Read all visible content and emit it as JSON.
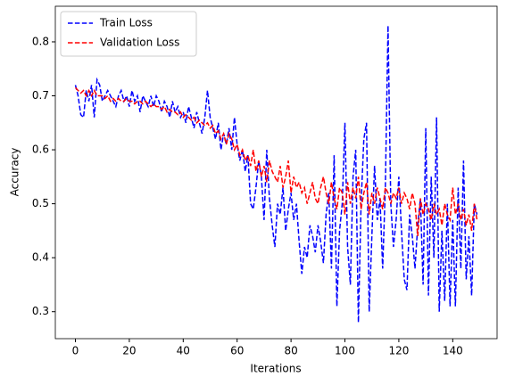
{
  "chart_data": {
    "type": "line",
    "xlabel": "Iterations",
    "ylabel": "Accuracy",
    "x": [
      0,
      1,
      2,
      3,
      4,
      5,
      6,
      7,
      8,
      9,
      10,
      11,
      12,
      13,
      14,
      15,
      16,
      17,
      18,
      19,
      20,
      21,
      22,
      23,
      24,
      25,
      26,
      27,
      28,
      29,
      30,
      31,
      32,
      33,
      34,
      35,
      36,
      37,
      38,
      39,
      40,
      41,
      42,
      43,
      44,
      45,
      46,
      47,
      48,
      49,
      50,
      51,
      52,
      53,
      54,
      55,
      56,
      57,
      58,
      59,
      60,
      61,
      62,
      63,
      64,
      65,
      66,
      67,
      68,
      69,
      70,
      71,
      72,
      73,
      74,
      75,
      76,
      77,
      78,
      79,
      80,
      81,
      82,
      83,
      84,
      85,
      86,
      87,
      88,
      89,
      90,
      91,
      92,
      93,
      94,
      95,
      96,
      97,
      98,
      99,
      100,
      101,
      102,
      103,
      104,
      105,
      106,
      107,
      108,
      109,
      110,
      111,
      112,
      113,
      114,
      115,
      116,
      117,
      118,
      119,
      120,
      121,
      122,
      123,
      124,
      125,
      126,
      127,
      128,
      129,
      130,
      131,
      132,
      133,
      134,
      135,
      136,
      137,
      138,
      139,
      140,
      141,
      142,
      143,
      144,
      145,
      146,
      147,
      148,
      149
    ],
    "series": [
      {
        "name": "Train Loss",
        "color": "#0000ff",
        "values": [
          0.72,
          0.7,
          0.665,
          0.66,
          0.71,
          0.69,
          0.72,
          0.66,
          0.73,
          0.72,
          0.69,
          0.7,
          0.71,
          0.7,
          0.69,
          0.68,
          0.7,
          0.71,
          0.69,
          0.7,
          0.68,
          0.71,
          0.69,
          0.7,
          0.67,
          0.7,
          0.69,
          0.68,
          0.7,
          0.68,
          0.7,
          0.69,
          0.67,
          0.69,
          0.68,
          0.66,
          0.69,
          0.67,
          0.68,
          0.66,
          0.67,
          0.65,
          0.68,
          0.66,
          0.64,
          0.67,
          0.65,
          0.63,
          0.66,
          0.71,
          0.66,
          0.64,
          0.62,
          0.65,
          0.6,
          0.63,
          0.61,
          0.64,
          0.6,
          0.66,
          0.61,
          0.58,
          0.6,
          0.56,
          0.59,
          0.5,
          0.49,
          0.53,
          0.58,
          0.55,
          0.47,
          0.6,
          0.51,
          0.46,
          0.42,
          0.5,
          0.48,
          0.53,
          0.45,
          0.49,
          0.52,
          0.47,
          0.5,
          0.43,
          0.37,
          0.42,
          0.4,
          0.46,
          0.44,
          0.41,
          0.46,
          0.43,
          0.39,
          0.48,
          0.52,
          0.38,
          0.59,
          0.31,
          0.45,
          0.5,
          0.65,
          0.42,
          0.35,
          0.55,
          0.6,
          0.28,
          0.5,
          0.62,
          0.65,
          0.3,
          0.44,
          0.57,
          0.47,
          0.51,
          0.38,
          0.53,
          0.83,
          0.5,
          0.42,
          0.47,
          0.55,
          0.45,
          0.36,
          0.34,
          0.48,
          0.44,
          0.38,
          0.46,
          0.51,
          0.35,
          0.64,
          0.33,
          0.55,
          0.4,
          0.66,
          0.3,
          0.45,
          0.32,
          0.5,
          0.31,
          0.47,
          0.31,
          0.53,
          0.38,
          0.58,
          0.36,
          0.44,
          0.33,
          0.5,
          0.48
        ]
      },
      {
        "name": "Validation Loss",
        "color": "#ff0000",
        "values": [
          0.715,
          0.71,
          0.705,
          0.71,
          0.7,
          0.71,
          0.7,
          0.71,
          0.7,
          0.7,
          0.7,
          0.695,
          0.7,
          0.69,
          0.695,
          0.69,
          0.695,
          0.69,
          0.69,
          0.695,
          0.69,
          0.69,
          0.685,
          0.69,
          0.69,
          0.685,
          0.69,
          0.685,
          0.68,
          0.685,
          0.68,
          0.68,
          0.675,
          0.68,
          0.67,
          0.675,
          0.67,
          0.67,
          0.665,
          0.67,
          0.66,
          0.665,
          0.66,
          0.655,
          0.66,
          0.65,
          0.655,
          0.65,
          0.645,
          0.65,
          0.64,
          0.645,
          0.63,
          0.635,
          0.62,
          0.63,
          0.61,
          0.63,
          0.62,
          0.6,
          0.61,
          0.59,
          0.6,
          0.58,
          0.59,
          0.57,
          0.6,
          0.56,
          0.58,
          0.55,
          0.57,
          0.54,
          0.58,
          0.56,
          0.55,
          0.54,
          0.57,
          0.53,
          0.55,
          0.58,
          0.52,
          0.55,
          0.53,
          0.54,
          0.52,
          0.53,
          0.5,
          0.52,
          0.54,
          0.51,
          0.5,
          0.53,
          0.55,
          0.52,
          0.5,
          0.54,
          0.51,
          0.49,
          0.53,
          0.52,
          0.48,
          0.54,
          0.5,
          0.53,
          0.51,
          0.55,
          0.49,
          0.52,
          0.54,
          0.48,
          0.52,
          0.5,
          0.53,
          0.51,
          0.49,
          0.53,
          0.52,
          0.5,
          0.52,
          0.51,
          0.53,
          0.5,
          0.52,
          0.51,
          0.49,
          0.52,
          0.5,
          0.44,
          0.51,
          0.48,
          0.5,
          0.49,
          0.47,
          0.5,
          0.48,
          0.49,
          0.46,
          0.5,
          0.48,
          0.47,
          0.53,
          0.48,
          0.5,
          0.47,
          0.49,
          0.46,
          0.48,
          0.45,
          0.5,
          0.47
        ]
      }
    ],
    "xlim": [
      -7.45,
      156.45
    ],
    "xticks": [
      0,
      20,
      40,
      60,
      80,
      100,
      120,
      140
    ],
    "ylim": [
      0.25,
      0.866
    ],
    "yticks": [
      0.3,
      0.4,
      0.5,
      0.6,
      0.7,
      0.8
    ],
    "legend": "upper left",
    "dashed": true
  }
}
